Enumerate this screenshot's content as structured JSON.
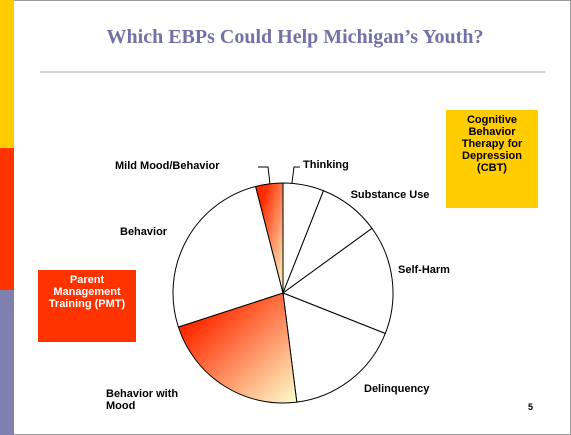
{
  "chart_data": {
    "type": "pie",
    "title": "Which EBPs Could Help Michigan’s Youth?",
    "categories": [
      "Thinking",
      "Substance Use",
      "Self-Harm",
      "Delinquency",
      "Behavior with Mood",
      "Behavior",
      "Mild Mood/Behavior"
    ],
    "values": [
      6,
      9,
      16,
      17,
      22,
      26,
      4
    ],
    "colors": [
      "#ffffff",
      "#ffffff",
      "#ffffff",
      "#ffffff",
      "gradient",
      "#ffffff",
      "gradient"
    ],
    "gradient_colors": [
      "#ff2a00",
      "#ffffcc"
    ],
    "annotations": [
      {
        "text": "Cognitive Behavior Therapy for Depression (CBT)",
        "color": "#ffcc00",
        "text_color": "#000000"
      },
      {
        "text": "Parent Management Training (PMT)",
        "color": "#ff3300",
        "text_color": "#ffffff"
      }
    ],
    "page_number": "5"
  }
}
